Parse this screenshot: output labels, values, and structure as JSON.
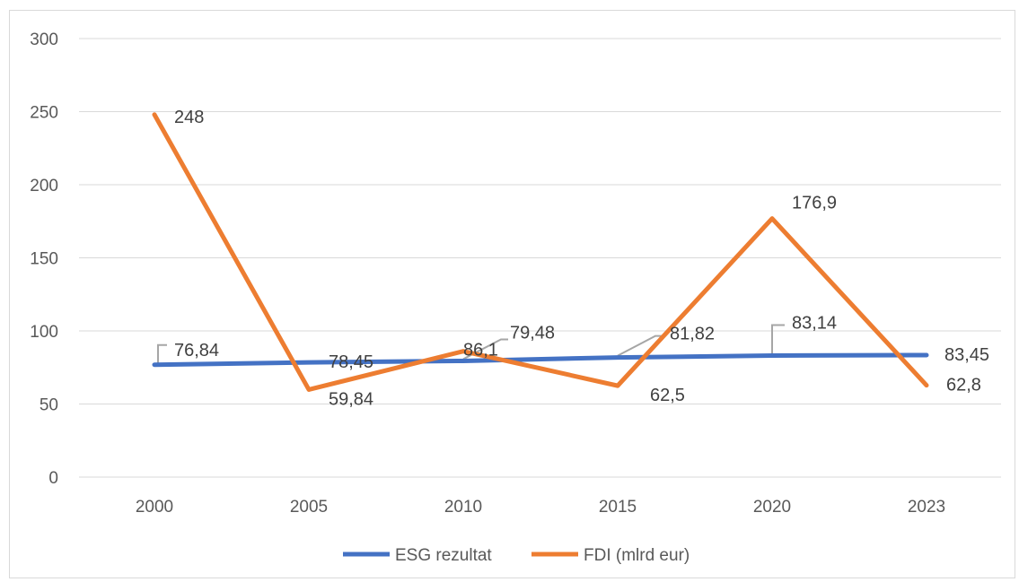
{
  "chart_data": {
    "type": "line",
    "categories": [
      "2000",
      "2005",
      "2010",
      "2015",
      "2020",
      "2023"
    ],
    "ylim": [
      0,
      300
    ],
    "yticks": [
      0,
      50,
      100,
      150,
      200,
      250,
      300
    ],
    "grid": true,
    "legend_position": "bottom",
    "series": [
      {
        "name": "ESG rezultat",
        "color": "#4472c4",
        "values": [
          76.84,
          78.45,
          79.48,
          81.82,
          83.14,
          83.45
        ],
        "labels": [
          "76,84",
          "78,45",
          "79,48",
          "81,82",
          "83,14",
          "83,45"
        ]
      },
      {
        "name": "FDI (mlrd eur)",
        "color": "#ed7d31",
        "values": [
          248,
          59.84,
          86.1,
          62.5,
          176.9,
          62.8
        ],
        "labels": [
          "248",
          "59,84",
          "86,1",
          "62,5",
          "176,9",
          "62,8"
        ]
      }
    ]
  }
}
